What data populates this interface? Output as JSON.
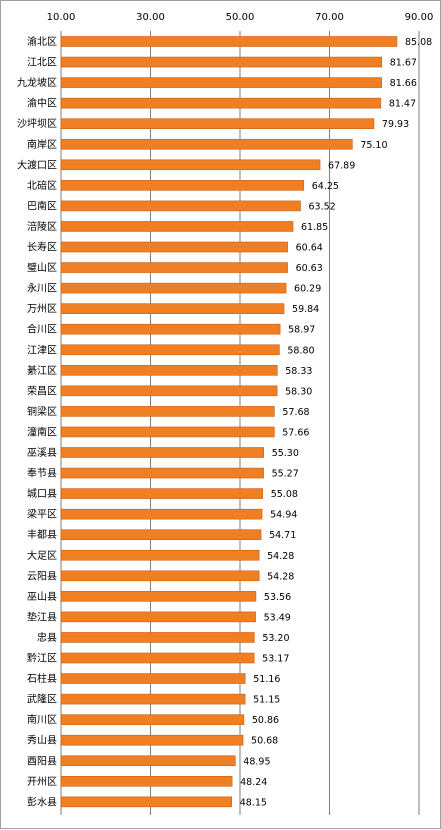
{
  "chart_data": {
    "type": "bar",
    "orientation": "horizontal",
    "title": "",
    "xlabel": "",
    "ylabel": "",
    "xlim": [
      10,
      90
    ],
    "ticks": [
      "10.00",
      "30.00",
      "50.00",
      "70.00",
      "90.00"
    ],
    "tick_values": [
      10,
      30,
      50,
      70,
      90
    ],
    "grid": true,
    "legend": "none",
    "bar_color": "#F07E22",
    "bar_edge_color": "#C8621A",
    "grid_color": "#7F7F7F",
    "categories": [
      "渝北区",
      "江北区",
      "九龙坡区",
      "渝中区",
      "沙坪坝区",
      "南岸区",
      "大渡口区",
      "北碚区",
      "巴南区",
      "涪陵区",
      "长寿区",
      "璧山区",
      "永川区",
      "万州区",
      "合川区",
      "江津区",
      "綦江区",
      "荣昌区",
      "铜梁区",
      "潼南区",
      "巫溪县",
      "奉节县",
      "城口县",
      "梁平区",
      "丰都县",
      "大足区",
      "云阳县",
      "巫山县",
      "垫江县",
      "忠县",
      "黔江区",
      "石柱县",
      "武隆区",
      "南川区",
      "秀山县",
      "酉阳县",
      "开州区",
      "彭水县"
    ],
    "values": [
      85.08,
      81.67,
      81.66,
      81.47,
      79.93,
      75.1,
      67.89,
      64.25,
      63.52,
      61.85,
      60.64,
      60.63,
      60.29,
      59.84,
      58.97,
      58.8,
      58.33,
      58.3,
      57.68,
      57.66,
      55.3,
      55.27,
      55.08,
      54.94,
      54.71,
      54.28,
      54.28,
      53.56,
      53.49,
      53.2,
      53.17,
      51.16,
      51.15,
      50.86,
      50.68,
      48.95,
      48.24,
      48.15
    ],
    "value_labels": [
      "85.08",
      "81.67",
      "81.66",
      "81.47",
      "79.93",
      "75.10",
      "67.89",
      "64.25",
      "63.52",
      "61.85",
      "60.64",
      "60.63",
      "60.29",
      "59.84",
      "58.97",
      "58.80",
      "58.33",
      "58.30",
      "57.68",
      "57.66",
      "55.30",
      "55.27",
      "55.08",
      "54.94",
      "54.71",
      "54.28",
      "54.28",
      "53.56",
      "53.49",
      "53.20",
      "53.17",
      "51.16",
      "51.15",
      "50.86",
      "50.68",
      "48.95",
      "48.24",
      "48.15"
    ]
  }
}
